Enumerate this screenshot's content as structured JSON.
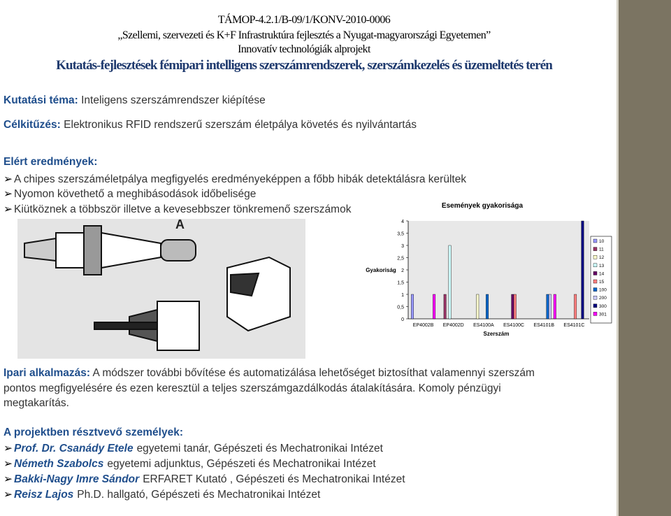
{
  "header": {
    "project_code": "TÁMOP-4.2.1/B-09/1/KONV-2010-0006",
    "line2": "„Szellemi, szervezeti és K+F Infrastruktúra fejlesztés a Nyugat-magyarországi Egyetemen”",
    "line3": "Innovatív technológiák alprojekt",
    "title": "Kutatás-fejlesztések fémipari intelligens szerszámrendszerek, szerszámkezelés és üzemeltetés terén"
  },
  "topic": {
    "label": "Kutatási téma:",
    "text": "Inteligens szerszámrendszer kiépítése"
  },
  "goal": {
    "label": "Célkitűzés:",
    "text": "Elektronikus RFID rendszerű szerszám életpálya követés és nyilvántartás"
  },
  "results": {
    "heading": "Elért eredmények:",
    "items": [
      "A chipes szerszáméletpálya megfigyelés eredményeképpen a főbb hibák detektálásra kerültek",
      "Nyomon követhető a meghibásodások időbelisége",
      "Kiütköznek a többször illetve a kevesebbszer tönkremenő szerszámok"
    ]
  },
  "figure_label": "A",
  "application": {
    "label": "Ipari alkalmazás:",
    "text": "A módszer további bővítése és automatizálása lehetőséget biztosíthat valamennyi szerszám pontos megfigyelésére és ezen keresztül a teljes szerszámgazdálkodás átalakítására. Komoly pénzügyi megtakarítás."
  },
  "people": {
    "heading": "A projektben résztvevő személyek:",
    "items": [
      {
        "name": "Prof. Dr. Csanády Etele",
        "text": "egyetemi tanár, Gépészeti és Mechatronikai Intézet"
      },
      {
        "name": "Németh Szabolcs",
        "text": "egyetemi adjunktus, Gépészeti és Mechatronikai Intézet"
      },
      {
        "name": "Bakki-Nagy Imre Sándor",
        "text": "ERFARET Kutató , Gépészeti és Mechatronikai Intézet"
      },
      {
        "name": "Reisz Lajos",
        "text": "Ph.D. hallgató, Gépészeti és Mechatronikai Intézet"
      }
    ]
  },
  "chart_data": {
    "type": "bar",
    "title": "Események gyakorisága",
    "y_label": "Gyakoriság",
    "x_label": "Szerszám",
    "categories": [
      "EP4002B",
      "EP4002D",
      "ES4100A",
      "ES4100C",
      "ES4101B",
      "ES4101C"
    ],
    "series": [
      {
        "name": "10",
        "color": "#9999ff",
        "values": [
          1,
          0,
          0,
          0,
          0,
          0
        ]
      },
      {
        "name": "11",
        "color": "#993366",
        "values": [
          0,
          1,
          0,
          0,
          0,
          0
        ]
      },
      {
        "name": "12",
        "color": "#ffffcc",
        "values": [
          0,
          0,
          1,
          0,
          0,
          0
        ]
      },
      {
        "name": "13",
        "color": "#ccffff",
        "values": [
          0,
          3,
          0,
          0,
          0,
          0
        ]
      },
      {
        "name": "14",
        "color": "#660066",
        "values": [
          0,
          0,
          0,
          1,
          0,
          0
        ]
      },
      {
        "name": "15",
        "color": "#ff8080",
        "values": [
          0,
          0,
          0,
          1,
          0,
          1
        ]
      },
      {
        "name": "100",
        "color": "#0066cc",
        "values": [
          0,
          0,
          1,
          0,
          1,
          0
        ]
      },
      {
        "name": "200",
        "color": "#ccccff",
        "values": [
          0,
          0,
          0,
          0,
          1,
          0
        ]
      },
      {
        "name": "300",
        "color": "#000080",
        "values": [
          0,
          0,
          0,
          0,
          0,
          4
        ]
      },
      {
        "name": "301",
        "color": "#ff00ff",
        "values": [
          1,
          0,
          0,
          0,
          1,
          0
        ]
      }
    ],
    "ylim": [
      0,
      4
    ],
    "yticks": [
      0,
      {
        "value": 0.5,
        "label": "0,5"
      },
      1,
      {
        "value": 1.5,
        "label": "1,5"
      },
      2,
      {
        "value": 2.5,
        "label": "2,5"
      },
      3,
      {
        "value": 3.5,
        "label": "3,5"
      },
      4
    ]
  }
}
